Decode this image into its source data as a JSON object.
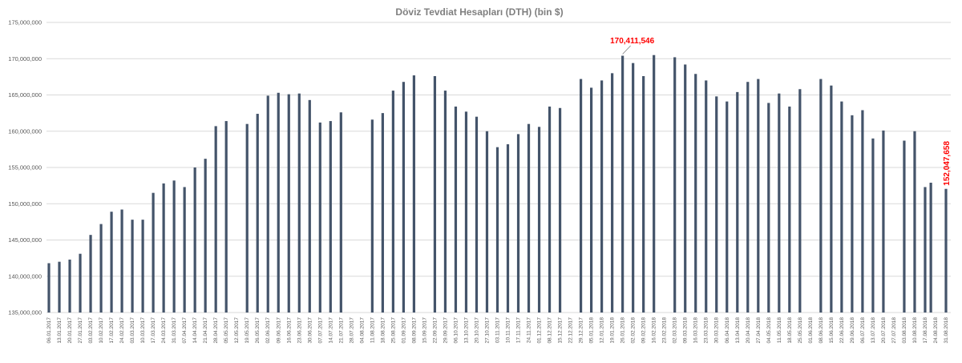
{
  "chart_data": {
    "type": "bar",
    "title": "Döviz Tevdiat Hesapları (DTH) (bin $)",
    "xlabel": "",
    "ylabel": "",
    "ylim": [
      135000000,
      175000000
    ],
    "yticks": [
      "135,000,000",
      "140,000,000",
      "145,000,000",
      "150,000,000",
      "155,000,000",
      "160,000,000",
      "165,000,000",
      "170,000,000",
      "175,000,000"
    ],
    "ytick_values": [
      135000000,
      140000000,
      145000000,
      150000000,
      155000000,
      160000000,
      165000000,
      170000000,
      175000000
    ],
    "grid": true,
    "bar_color": "#44546a",
    "annotation_color": "#ff0000",
    "categories": [
      "06.01.2017",
      "13.01.2017",
      "20.01.2017",
      "27.01.2017",
      "03.02.2017",
      "10.02.2017",
      "17.02.2017",
      "24.02.2017",
      "03.03.2017",
      "10.03.2017",
      "17.03.2017",
      "24.03.2017",
      "31.03.2017",
      "07.04.2017",
      "14.04.2017",
      "21.04.2017",
      "28.04.2017",
      "05.05.2017",
      "12.05.2017",
      "19.05.2017",
      "26.05.2017",
      "02.06.2017",
      "09.06.2017",
      "16.06.2017",
      "23.06.2017",
      "30.06.2017",
      "07.07.2017",
      "14.07.2017",
      "21.07.2017",
      "28.07.2017",
      "04.08.2017",
      "11.08.2017",
      "18.08.2017",
      "25.08.2017",
      "01.09.2017",
      "08.09.2017",
      "15.09.2017",
      "22.09.2017",
      "29.09.2017",
      "06.10.2017",
      "13.10.2017",
      "20.10.2017",
      "27.10.2017",
      "03.11.2017",
      "10.11.2017",
      "17.11.2017",
      "24.11.2017",
      "01.12.2017",
      "08.12.2017",
      "15.12.2017",
      "22.12.2017",
      "29.12.2017",
      "05.01.2018",
      "12.01.2018",
      "19.01.2018",
      "26.01.2018",
      "02.02.2018",
      "09.02.2018",
      "16.02.2018",
      "23.02.2018",
      "02.03.2018",
      "09.03.2018",
      "16.03.2018",
      "23.03.2018",
      "30.03.2018",
      "06.04.2018",
      "13.04.2018",
      "20.04.2018",
      "27.04.2018",
      "04.05.2018",
      "11.05.2018",
      "18.05.2018",
      "25.05.2018",
      "01.06.2018",
      "08.06.2018",
      "15.06.2018",
      "22.06.2018",
      "29.06.2018",
      "06.07.2018",
      "13.07.2018",
      "20.07.2018",
      "27.07.2018",
      "03.08.2018",
      "10.08.2018",
      "17.08.2018",
      "24.08.2018",
      "31.08.2018"
    ],
    "x_positions": [
      0,
      1,
      2,
      3,
      4,
      5,
      6,
      7,
      8,
      9,
      10,
      11,
      12,
      13,
      14,
      15,
      16,
      17,
      18,
      19,
      20,
      21,
      22,
      23,
      24,
      25,
      26,
      27,
      28,
      29,
      30,
      31,
      32,
      33,
      34,
      35,
      36,
      37,
      38,
      39,
      40,
      41,
      42,
      43,
      44,
      45,
      46,
      47,
      48,
      49,
      50,
      51,
      52,
      53,
      54,
      55,
      56,
      57,
      58,
      59,
      60,
      61,
      62,
      63,
      64,
      65,
      66,
      67,
      68,
      69,
      70,
      71,
      72,
      73,
      74,
      75,
      76,
      77,
      78,
      79,
      80,
      81,
      82,
      83,
      84,
      84.55,
      86
    ],
    "values": [
      141800000,
      142000000,
      142300000,
      143100000,
      145700000,
      147200000,
      148900000,
      149200000,
      147800000,
      147800000,
      151500000,
      152800000,
      153200000,
      152300000,
      155000000,
      156200000,
      160700000,
      161400000,
      null,
      161000000,
      162400000,
      164900000,
      165300000,
      165100000,
      165200000,
      164300000,
      161200000,
      161400000,
      162600000,
      null,
      null,
      161600000,
      162500000,
      165600000,
      166800000,
      167700000,
      null,
      167600000,
      165600000,
      163400000,
      162700000,
      162000000,
      160000000,
      157800000,
      158200000,
      159600000,
      161000000,
      160600000,
      163400000,
      163200000,
      null,
      167200000,
      166000000,
      167000000,
      168000000,
      170411546,
      169400000,
      167600000,
      170500000,
      null,
      170200000,
      169200000,
      167900000,
      167000000,
      164800000,
      164100000,
      165400000,
      166800000,
      167200000,
      163900000,
      165200000,
      163400000,
      165800000,
      null,
      167200000,
      166300000,
      164100000,
      162200000,
      162900000,
      159000000,
      160100000,
      null,
      158700000,
      160000000,
      152300000,
      152900000,
      152047658
    ],
    "annotations": [
      {
        "text": "170,411,546",
        "index": 55
      },
      {
        "text": "152,047,658",
        "index": 86
      }
    ]
  }
}
